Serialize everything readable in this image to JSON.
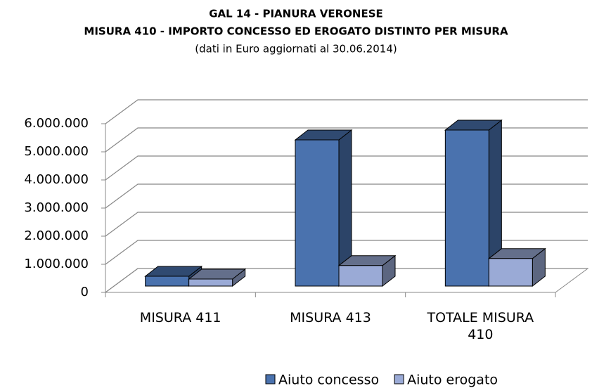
{
  "chart_data": {
    "type": "bar3d",
    "title": "GAL 14 - PIANURA VERONESE",
    "subtitle": "MISURA 410  - IMPORTO CONCESSO ED EROGATO DISTINTO PER MISURA",
    "note": "(dati  in Euro aggiornati al 30.06.2014)",
    "categories": [
      "MISURA 411",
      "MISURA 413",
      "TOTALE MISURA 410"
    ],
    "series": [
      {
        "name": "Aiuto concesso",
        "color": "#4a72ae",
        "values": [
          350000,
          5200000,
          5550000
        ]
      },
      {
        "name": "Aiuto erogato",
        "color": "#9aaad6",
        "values": [
          250000,
          730000,
          980000
        ]
      }
    ],
    "ylim": [
      0,
      6000000
    ],
    "yticks": [
      0,
      {
        "value": 1000000,
        "label": "1.000.000"
      },
      {
        "value": 2000000,
        "label": "2.000.000"
      },
      {
        "value": 3000000,
        "label": "3.000.000"
      },
      {
        "value": 4000000,
        "label": "4.000.000"
      },
      {
        "value": 5000000,
        "label": "5.000.000"
      },
      {
        "value": 6000000,
        "label": "6.000.000"
      }
    ],
    "grid": true,
    "legend": "bottom"
  }
}
